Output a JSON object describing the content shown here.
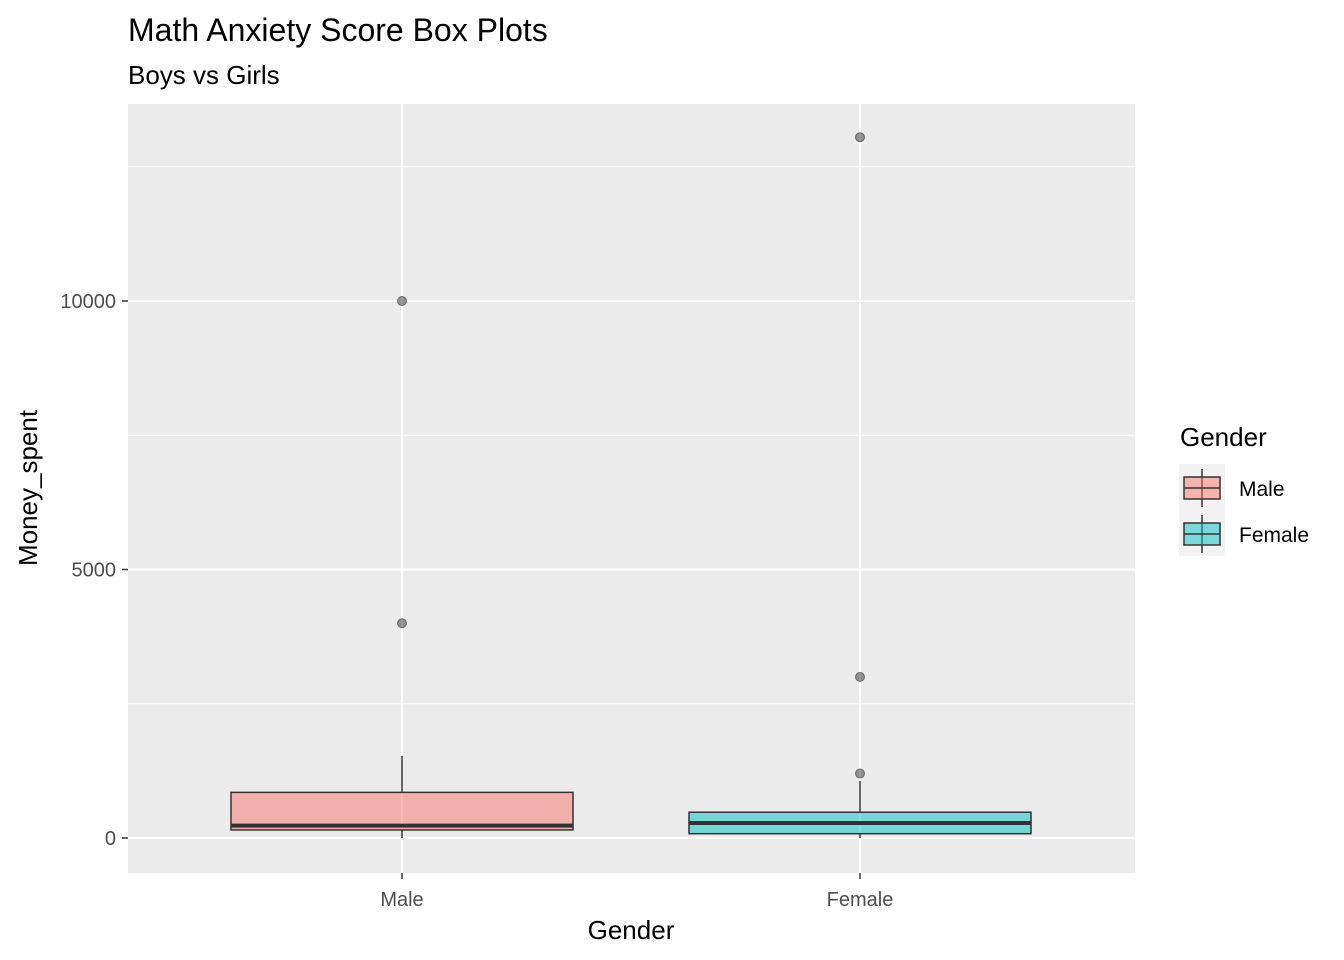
{
  "chart_data": {
    "type": "box",
    "title": "Math Anxiety Score Box Plots",
    "subtitle": "Boys vs Girls",
    "xlabel": "Gender",
    "ylabel": "Money_spent",
    "categories": [
      "Male",
      "Female"
    ],
    "yticks": [
      0,
      5000,
      10000
    ],
    "ylim": [
      -650,
      13700
    ],
    "grid": true,
    "legend": {
      "title": "Gender",
      "position": "right"
    },
    "series": [
      {
        "name": "Male",
        "color": "#F8766D",
        "whisker_low": 0,
        "q1": 150,
        "median": 230,
        "q3": 850,
        "whisker_high": 1530,
        "outliers": [
          4000,
          10000
        ]
      },
      {
        "name": "Female",
        "color": "#00BFC4",
        "whisker_low": 0,
        "q1": 80,
        "median": 280,
        "q3": 480,
        "whisker_high": 1060,
        "outliers": [
          1200,
          3000,
          13050
        ]
      }
    ]
  }
}
